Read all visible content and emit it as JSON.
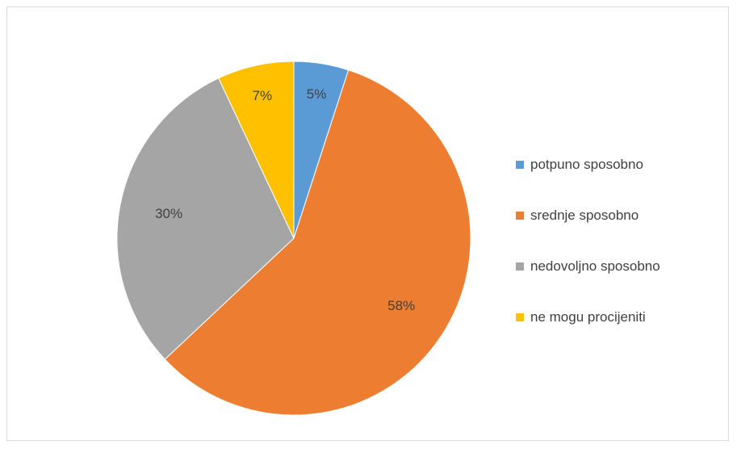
{
  "chart_data": {
    "type": "pie",
    "categories": [
      "potpuno sposobno",
      "srednje sposobno",
      "nedovoljno sposobno",
      "ne mogu procijeniti"
    ],
    "values": [
      5,
      58,
      30,
      7
    ],
    "labels": [
      "5%",
      "58%",
      "30%",
      "7%"
    ],
    "colors": [
      "#5b9bd5",
      "#ed7d31",
      "#a5a5a5",
      "#ffc000"
    ],
    "title": "",
    "legend_position": "right",
    "start_angle": "top",
    "direction": "clockwise"
  }
}
